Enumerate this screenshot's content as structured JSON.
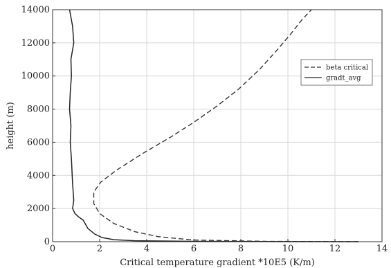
{
  "chart_data": {
    "type": "line",
    "title": "",
    "xlabel": "Critical temperature gradient *10E5 (K/m)",
    "ylabel": "height (m)",
    "xlim": [
      0,
      14
    ],
    "ylim": [
      0,
      14000
    ],
    "xticks": [
      "0",
      "2",
      "4",
      "6",
      "8",
      "10",
      "12",
      "14"
    ],
    "yticks": [
      "0",
      "2000",
      "4000",
      "6000",
      "8000",
      "10000",
      "12000",
      "14000"
    ],
    "grid": true,
    "legend_position": "top-right",
    "series": [
      {
        "name": "beta critical",
        "style": "dashed",
        "color": "#333333",
        "points": [
          [
            13.0,
            0
          ],
          [
            9.0,
            20
          ],
          [
            6.0,
            100
          ],
          [
            4.5,
            300
          ],
          [
            3.5,
            600
          ],
          [
            2.6,
            1100
          ],
          [
            2.0,
            1700
          ],
          [
            1.75,
            2300
          ],
          [
            1.75,
            3000
          ],
          [
            2.05,
            3600
          ],
          [
            2.7,
            4300
          ],
          [
            3.8,
            5300
          ],
          [
            5.0,
            6300
          ],
          [
            6.0,
            7200
          ],
          [
            7.0,
            8200
          ],
          [
            7.9,
            9200
          ],
          [
            8.8,
            10400
          ],
          [
            9.5,
            11500
          ],
          [
            10.1,
            12500
          ],
          [
            10.6,
            13400
          ],
          [
            11.0,
            14000
          ]
        ]
      },
      {
        "name": "gradt_avg",
        "style": "solid",
        "color": "#222222",
        "points": [
          [
            13.0,
            0
          ],
          [
            10.0,
            5
          ],
          [
            6.0,
            20
          ],
          [
            3.5,
            60
          ],
          [
            2.6,
            120
          ],
          [
            2.1,
            250
          ],
          [
            1.8,
            450
          ],
          [
            1.5,
            800
          ],
          [
            1.3,
            1300
          ],
          [
            1.1,
            1500
          ],
          [
            0.95,
            1700
          ],
          [
            0.85,
            2000
          ],
          [
            0.9,
            2500
          ],
          [
            0.85,
            3500
          ],
          [
            0.8,
            5000
          ],
          [
            0.75,
            6000
          ],
          [
            0.78,
            7000
          ],
          [
            0.72,
            8000
          ],
          [
            0.75,
            9000
          ],
          [
            0.8,
            10000
          ],
          [
            0.78,
            11000
          ],
          [
            0.9,
            12000
          ],
          [
            0.85,
            13000
          ],
          [
            0.72,
            14000
          ]
        ]
      }
    ]
  }
}
